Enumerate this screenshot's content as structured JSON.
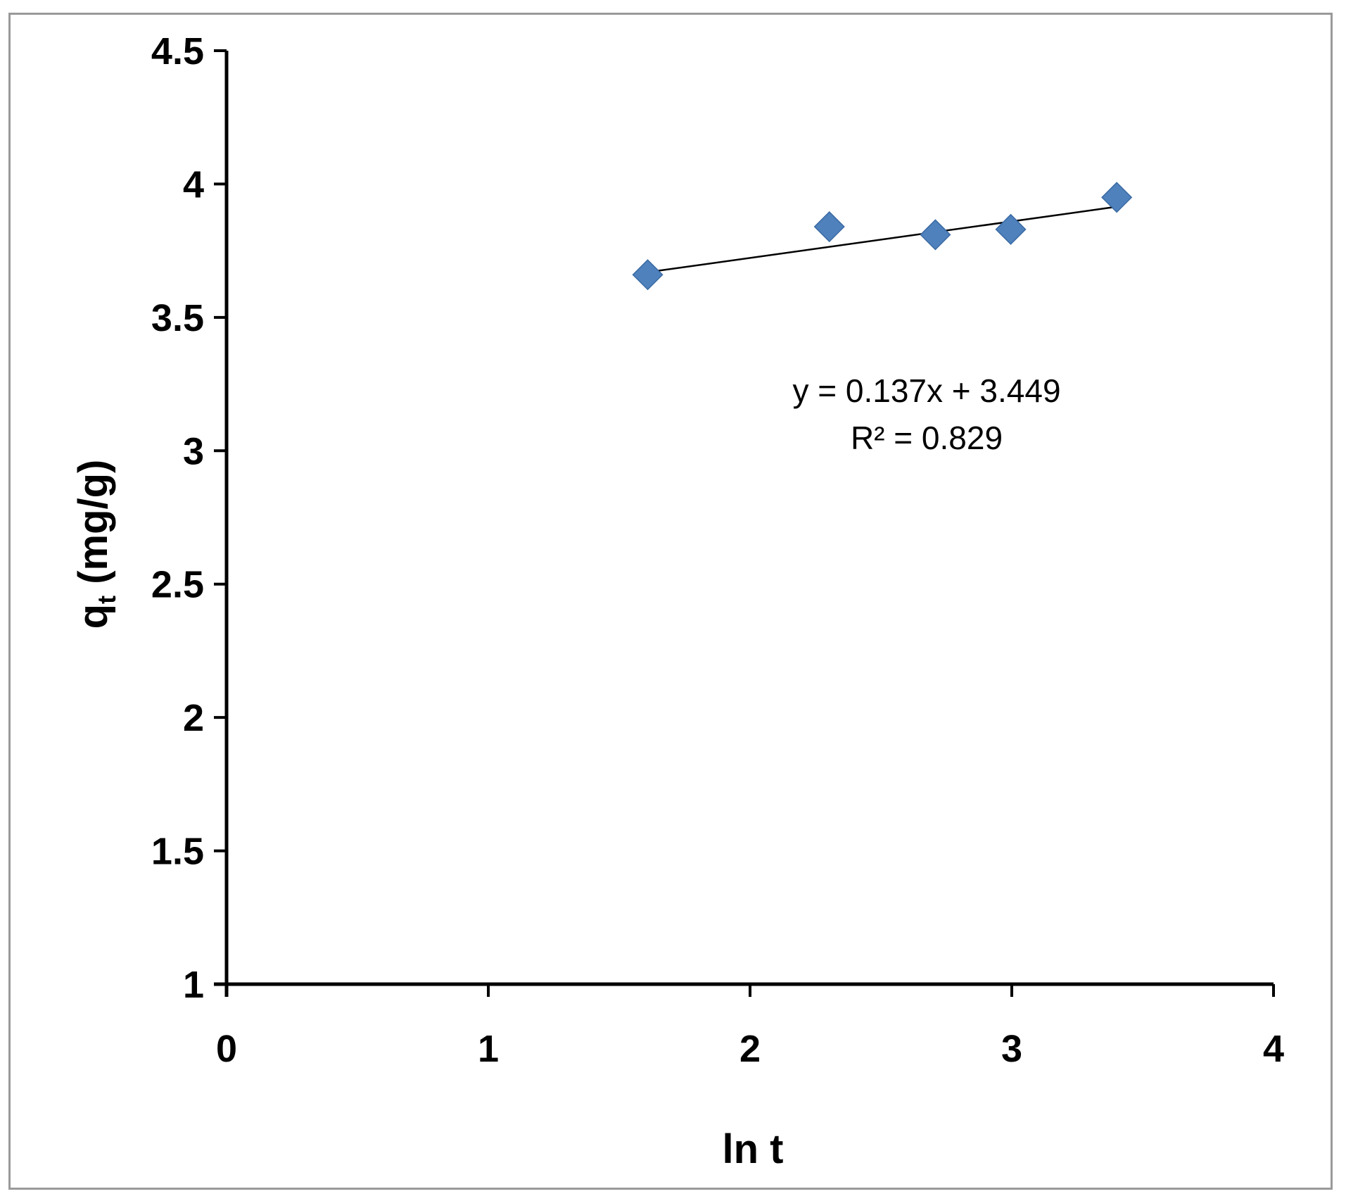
{
  "chart_data": {
    "type": "scatter",
    "x": [
      1.609,
      2.303,
      2.708,
      2.996,
      3.401
    ],
    "y": [
      3.66,
      3.84,
      3.81,
      3.83,
      3.95
    ],
    "xlim": [
      0,
      4
    ],
    "ylim": [
      1,
      4.5
    ],
    "xticks": [
      "0",
      "1",
      "2",
      "3",
      "4"
    ],
    "yticks": [
      "1",
      "1.5",
      "2",
      "2.5",
      "3",
      "3.5",
      "4",
      "4.5"
    ],
    "xlabel": "ln t",
    "ylabel_main": "q",
    "ylabel_sub": "t",
    "ylabel_unit": " (mg/g)",
    "trendline": {
      "slope": 0.137,
      "intercept": 3.449,
      "x_range": [
        1.609,
        3.401
      ],
      "equation": "y = 0.137x + 3.449",
      "r2": "R² = 0.829"
    },
    "grid": false,
    "legend": "none",
    "marker_color": "#4f81bd",
    "trendline_color": "#000000"
  }
}
